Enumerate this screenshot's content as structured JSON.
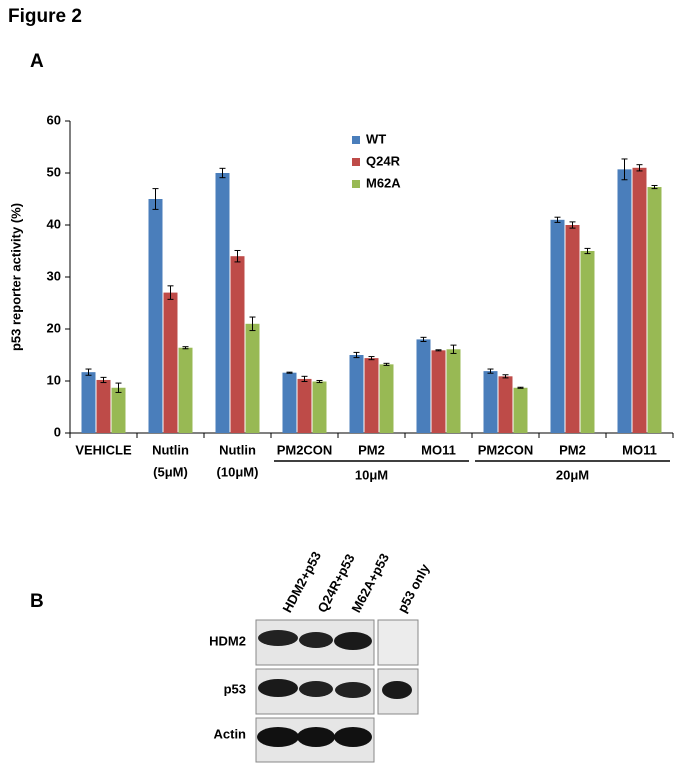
{
  "figure_title": "Figure 2",
  "panel_a": "A",
  "chart_data": {
    "type": "bar",
    "y_label": "p53 reporter activity (%)",
    "categories": [
      [
        "VEHICLE"
      ],
      [
        "Nutlin",
        "(5μM)"
      ],
      [
        "Nutlin",
        "(10μM)"
      ],
      [
        "PM2CON"
      ],
      [
        "PM2"
      ],
      [
        "MO11"
      ],
      [
        "PM2CON"
      ],
      [
        "PM2"
      ],
      [
        "MO11"
      ]
    ],
    "group_labels": [
      "10μM",
      "20μM"
    ],
    "series": [
      {
        "name": "WT",
        "color": "#4a7ebb",
        "values": [
          11.7,
          45,
          50,
          11.6,
          15,
          18,
          11.9,
          41,
          50.7
        ],
        "errors": [
          0.6,
          2,
          0.9,
          0.1,
          0.5,
          0.4,
          0.4,
          0.5,
          2
        ]
      },
      {
        "name": "Q24R",
        "color": "#be4b48",
        "values": [
          10.2,
          27,
          34,
          10.4,
          14.4,
          15.9,
          10.9,
          40,
          51
        ],
        "errors": [
          0.5,
          1.3,
          1.1,
          0.5,
          0.3,
          0.1,
          0.3,
          0.6,
          0.6
        ]
      },
      {
        "name": "M62A",
        "color": "#98b954",
        "values": [
          8.7,
          16.4,
          21,
          9.9,
          13.2,
          16.1,
          8.7,
          35,
          47.3
        ],
        "errors": [
          0.9,
          0.2,
          1.3,
          0.2,
          0.2,
          0.8,
          0.1,
          0.5,
          0.3
        ]
      }
    ],
    "ylim": [
      0,
      60
    ],
    "yticks": [
      0,
      10,
      20,
      30,
      40,
      50,
      60
    ],
    "grid": false,
    "legend": "upper-center"
  },
  "panel_b": "B",
  "blot": {
    "lanes": [
      "HDM2+p53",
      "Q24R+p53",
      "M62A+p53",
      "p53 only"
    ],
    "rows": [
      "HDM2",
      "p53",
      "Actin"
    ]
  }
}
